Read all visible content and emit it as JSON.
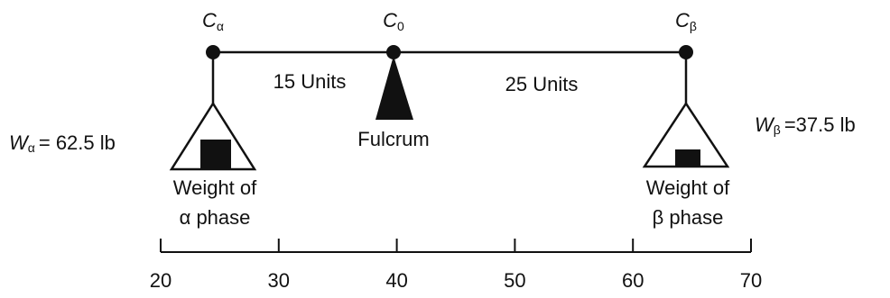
{
  "points": [
    {
      "symbol": "C",
      "subscript": "α"
    },
    {
      "symbol": "C",
      "subscript": "0"
    },
    {
      "symbol": "C",
      "subscript": "β"
    }
  ],
  "distances": [
    "15 Units",
    "25 Units"
  ],
  "fulcrum": "Fulcrum",
  "weights": [
    {
      "symbol": "W",
      "subscript": "α",
      "value": "= 62.5 lb"
    },
    {
      "symbol": "W",
      "subscript": "β",
      "value": "=37.5 lb"
    }
  ],
  "pans": [
    {
      "lines": [
        "Weight of",
        "α phase"
      ]
    },
    {
      "lines": [
        "Weight of",
        "β phase"
      ]
    }
  ],
  "scale": {
    "ticks": [
      20,
      30,
      40,
      50,
      60,
      70
    ]
  }
}
